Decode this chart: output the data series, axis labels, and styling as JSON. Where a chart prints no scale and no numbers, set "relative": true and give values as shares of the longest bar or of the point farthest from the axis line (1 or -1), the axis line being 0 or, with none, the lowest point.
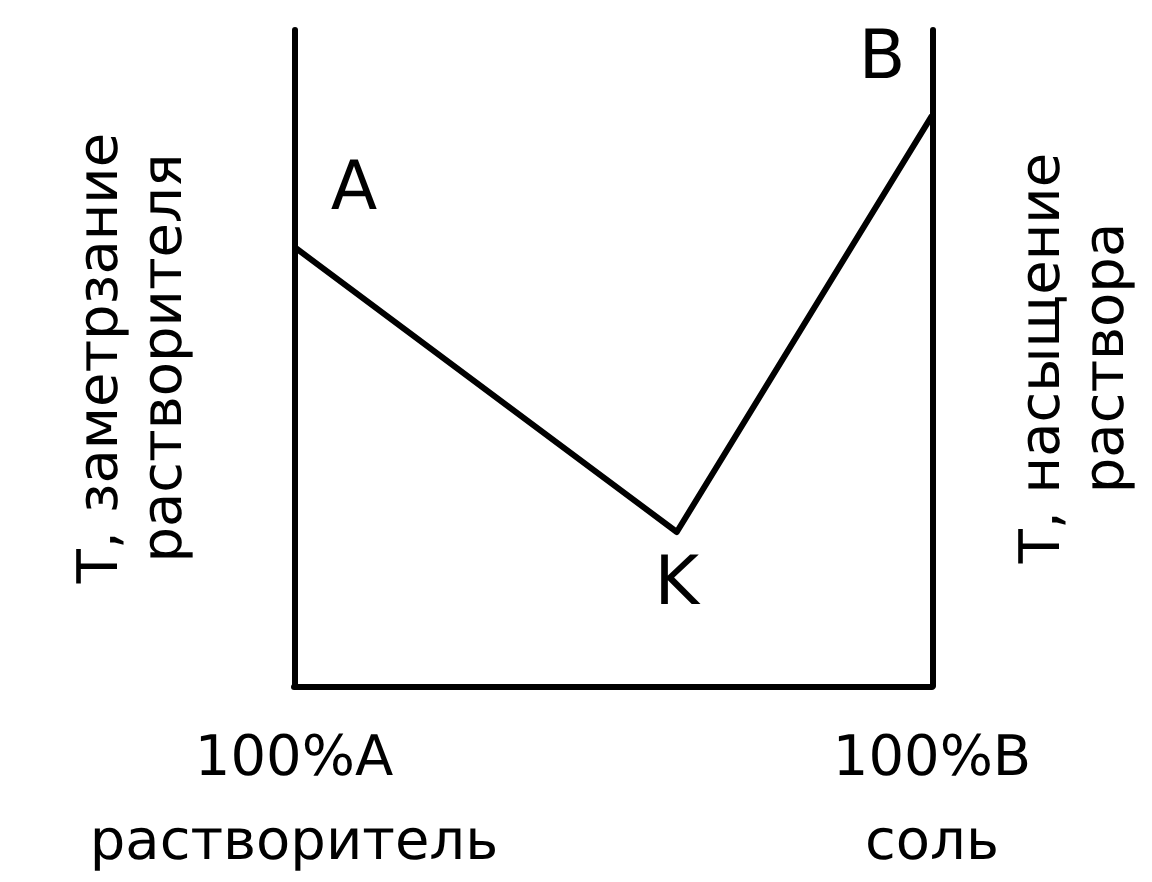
{
  "chart_data": {
    "type": "line",
    "relative": true,
    "ylabel": "T, заметрзание\nрастворителя",
    "y2label": "T, насыщение\nраствора",
    "categories": [
      "100%A\nрастворитель",
      null,
      null,
      null,
      null,
      "100%B\nсоль"
    ],
    "series": [
      {
        "color": "#000000",
        "values": [
          0.77,
          null,
          null,
          0.27,
          null,
          1
        ]
      }
    ],
    "annotations": [
      {
        "text": "A",
        "x": "100%A\nрастворитель",
        "y": 0.77
      },
      {
        "text": "K",
        "y": 0.27
      },
      {
        "text": "B",
        "x": "100%B\nсоль",
        "y": 1
      }
    ],
    "marker": "none",
    "line_style": "solid",
    "grid": false
  }
}
